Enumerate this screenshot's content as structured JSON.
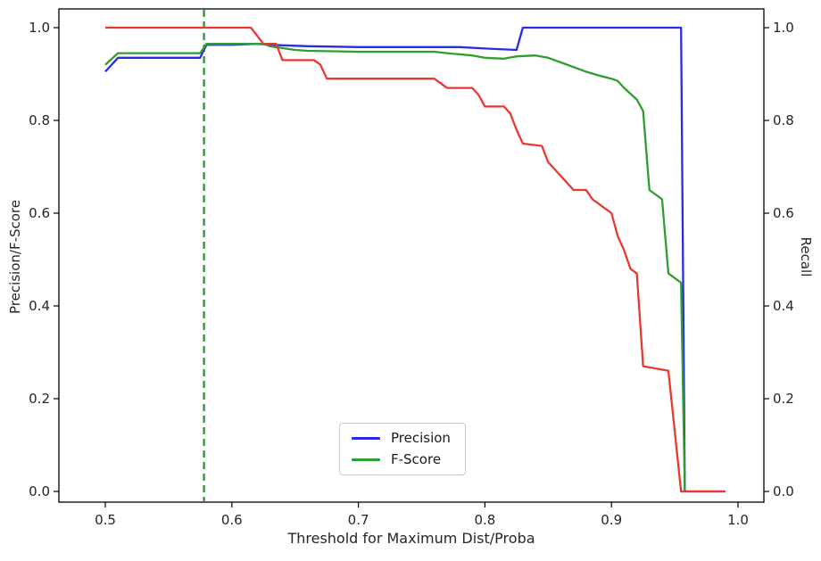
{
  "chart_data": {
    "type": "line",
    "title": "",
    "xlabel": "Threshold for Maximum Dist/Proba",
    "ylabel": "Precision/F-Score",
    "ylabel_right": "Recall",
    "xlim": [
      0.463,
      1.02
    ],
    "ylim": [
      -0.023,
      1.04
    ],
    "grid": false,
    "legend_position": "lower center",
    "xticks": {
      "values": [
        0.5,
        0.6,
        0.7,
        0.8,
        0.9,
        1.0
      ],
      "labels": [
        "0.5",
        "0.6",
        "0.7",
        "0.8",
        "0.9",
        "1.0"
      ]
    },
    "yticks": {
      "values": [
        0.0,
        0.2,
        0.4,
        0.6,
        0.8,
        1.0
      ],
      "labels": [
        "0.0",
        "0.2",
        "0.4",
        "0.6",
        "0.8",
        "1.0"
      ]
    },
    "vline": {
      "x": 0.578,
      "color": "#2e9e2e",
      "style": "dashed"
    },
    "frame_color": "#000000",
    "tick_label_color": "#262626",
    "series": [
      {
        "name": "Precision",
        "color": "#2b2be6",
        "axis": "left",
        "points": [
          [
            0.5,
            0.905
          ],
          [
            0.51,
            0.935
          ],
          [
            0.575,
            0.935
          ],
          [
            0.58,
            0.963
          ],
          [
            0.6,
            0.963
          ],
          [
            0.62,
            0.965
          ],
          [
            0.64,
            0.962
          ],
          [
            0.66,
            0.96
          ],
          [
            0.7,
            0.958
          ],
          [
            0.78,
            0.958
          ],
          [
            0.8,
            0.955
          ],
          [
            0.825,
            0.952
          ],
          [
            0.83,
            1.0
          ],
          [
            0.955,
            1.0
          ],
          [
            0.958,
            0.0
          ],
          [
            0.99,
            0.0
          ]
        ]
      },
      {
        "name": "F-Score",
        "color": "#2e9e2e",
        "axis": "left",
        "points": [
          [
            0.5,
            0.92
          ],
          [
            0.51,
            0.945
          ],
          [
            0.575,
            0.945
          ],
          [
            0.58,
            0.965
          ],
          [
            0.625,
            0.965
          ],
          [
            0.63,
            0.96
          ],
          [
            0.65,
            0.952
          ],
          [
            0.66,
            0.95
          ],
          [
            0.7,
            0.948
          ],
          [
            0.76,
            0.948
          ],
          [
            0.77,
            0.945
          ],
          [
            0.79,
            0.94
          ],
          [
            0.8,
            0.935
          ],
          [
            0.815,
            0.933
          ],
          [
            0.825,
            0.938
          ],
          [
            0.84,
            0.94
          ],
          [
            0.85,
            0.935
          ],
          [
            0.86,
            0.925
          ],
          [
            0.87,
            0.915
          ],
          [
            0.88,
            0.905
          ],
          [
            0.89,
            0.897
          ],
          [
            0.9,
            0.89
          ],
          [
            0.905,
            0.885
          ],
          [
            0.91,
            0.87
          ],
          [
            0.92,
            0.845
          ],
          [
            0.925,
            0.82
          ],
          [
            0.93,
            0.65
          ],
          [
            0.94,
            0.63
          ],
          [
            0.945,
            0.47
          ],
          [
            0.955,
            0.45
          ],
          [
            0.958,
            0.0
          ],
          [
            0.96,
            0.0
          ]
        ]
      },
      {
        "name": "Recall",
        "color": "#e8392e",
        "axis": "right",
        "points": [
          [
            0.5,
            1.0
          ],
          [
            0.615,
            1.0
          ],
          [
            0.625,
            0.965
          ],
          [
            0.635,
            0.965
          ],
          [
            0.64,
            0.93
          ],
          [
            0.665,
            0.93
          ],
          [
            0.67,
            0.92
          ],
          [
            0.675,
            0.89
          ],
          [
            0.76,
            0.89
          ],
          [
            0.77,
            0.87
          ],
          [
            0.79,
            0.87
          ],
          [
            0.795,
            0.855
          ],
          [
            0.8,
            0.83
          ],
          [
            0.815,
            0.83
          ],
          [
            0.82,
            0.815
          ],
          [
            0.825,
            0.78
          ],
          [
            0.83,
            0.75
          ],
          [
            0.845,
            0.745
          ],
          [
            0.85,
            0.71
          ],
          [
            0.86,
            0.68
          ],
          [
            0.87,
            0.65
          ],
          [
            0.88,
            0.65
          ],
          [
            0.885,
            0.63
          ],
          [
            0.89,
            0.62
          ],
          [
            0.9,
            0.6
          ],
          [
            0.905,
            0.55
          ],
          [
            0.91,
            0.52
          ],
          [
            0.915,
            0.48
          ],
          [
            0.92,
            0.47
          ],
          [
            0.925,
            0.27
          ],
          [
            0.945,
            0.26
          ],
          [
            0.955,
            0.0
          ],
          [
            0.99,
            0.0
          ]
        ]
      }
    ],
    "legend_entries": [
      "Precision",
      "F-Score"
    ]
  }
}
